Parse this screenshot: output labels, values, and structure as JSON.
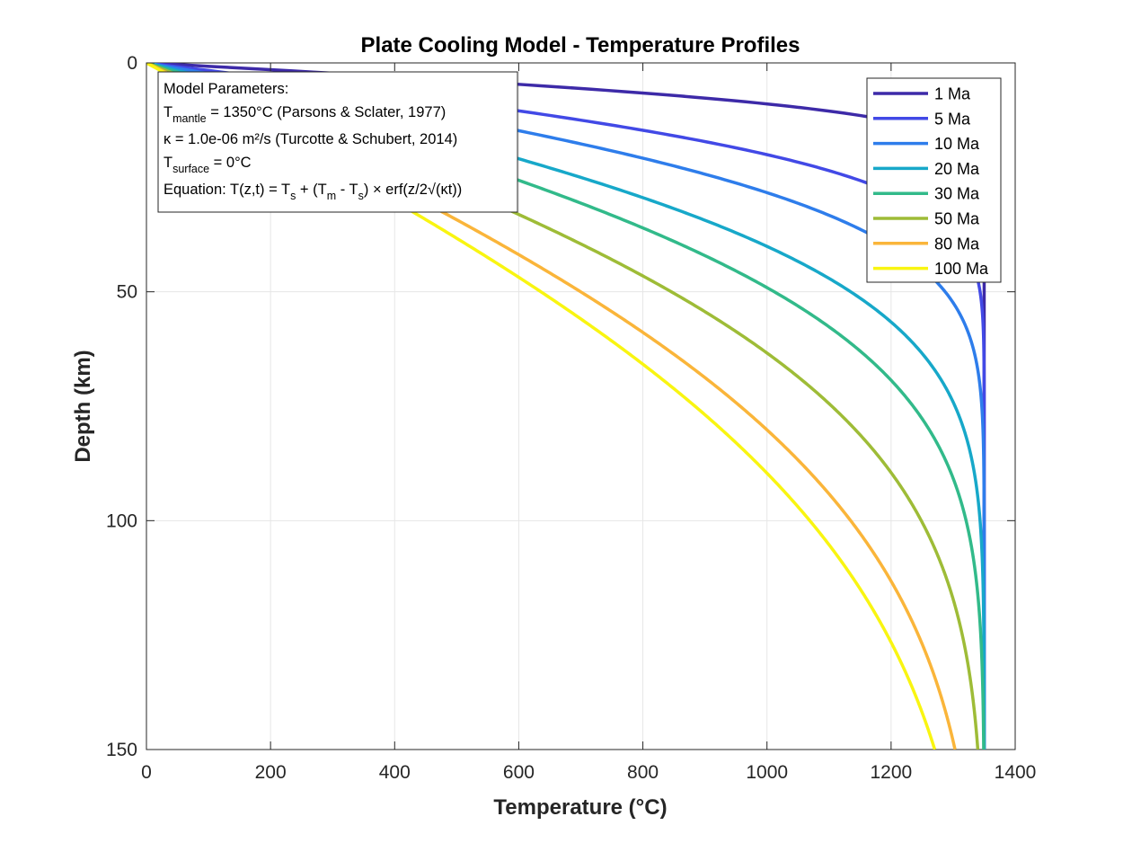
{
  "chart_data": {
    "type": "line",
    "title": "Plate Cooling Model - Temperature Profiles",
    "xlabel": "Temperature (°C)",
    "ylabel": "Depth (km)",
    "xlim": [
      0,
      1400
    ],
    "ylim": [
      0,
      150
    ],
    "y_reversed": true,
    "xticks": [
      "0",
      "200",
      "400",
      "600",
      "800",
      "1000",
      "1200",
      "1400"
    ],
    "yticks": [
      "0",
      "50",
      "100",
      "150"
    ],
    "grid": true,
    "legend_position": "top-right",
    "series": [
      {
        "name": "1 Ma",
        "age_ma": 1,
        "color": "#3D2AA8"
      },
      {
        "name": "5 Ma",
        "age_ma": 5,
        "color": "#4249E6"
      },
      {
        "name": "10 Ma",
        "age_ma": 10,
        "color": "#2E7DEB"
      },
      {
        "name": "20 Ma",
        "age_ma": 20,
        "color": "#17A8C9"
      },
      {
        "name": "30 Ma",
        "age_ma": 30,
        "color": "#32BA8A"
      },
      {
        "name": "50 Ma",
        "age_ma": 50,
        "color": "#9EBC37"
      },
      {
        "name": "80 Ma",
        "age_ma": 80,
        "color": "#FAB53A"
      },
      {
        "name": "100 Ma",
        "age_ma": 100,
        "color": "#F9F511"
      }
    ],
    "model": {
      "T_mantle": 1350,
      "T_surface": 0,
      "kappa": 1e-06
    },
    "annotation": {
      "heading": "Model Parameters:",
      "line1_T": "T",
      "line1_sub": "mantle",
      "line1_rest": " = 1350°C (Parsons & Sclater, 1977)",
      "line2": "κ = 1.0e-06 m²/s (Turcotte & Schubert, 2014)",
      "line3_T": "T",
      "line3_sub": "surface",
      "line3_rest": " = 0°C",
      "line4_a": "Equation: T(z,t) = T",
      "line4_sub1": "s",
      "line4_b": " + (T",
      "line4_sub2": "m",
      "line4_c": " - T",
      "line4_sub3": "s",
      "line4_d": ") × erf(z/2√(κt))"
    }
  }
}
